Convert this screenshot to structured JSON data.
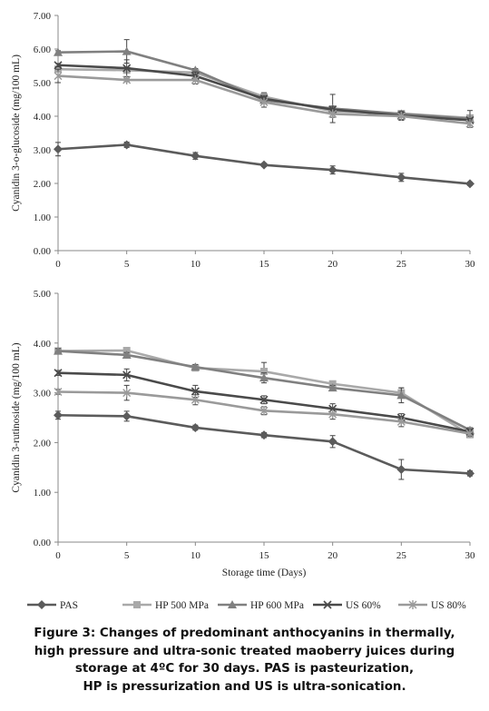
{
  "chart_data": [
    {
      "type": "line",
      "title": "",
      "xlabel": "",
      "ylabel": "Cyanidin 3-o-glucoside  (mg/100 mL)",
      "x": [
        0,
        5,
        10,
        15,
        20,
        25,
        30
      ],
      "xticks": [
        "0",
        "5",
        "10",
        "15",
        "20",
        "25",
        "30"
      ],
      "xlim": [
        0,
        30
      ],
      "ylim": [
        0,
        7
      ],
      "yticks": [
        "0.00",
        "1.00",
        "2.00",
        "3.00",
        "4.00",
        "5.00",
        "6.00",
        "7.00"
      ],
      "grid": false,
      "series": [
        {
          "name": "PAS",
          "values": [
            3.02,
            3.15,
            2.82,
            2.55,
            2.4,
            2.18,
            1.99
          ],
          "errors": [
            0.2,
            0.08,
            0.1,
            0.05,
            0.12,
            0.12,
            0.05
          ]
        },
        {
          "name": "HP 500 MPa",
          "values": [
            5.4,
            5.37,
            5.3,
            4.58,
            4.15,
            4.08,
            3.95
          ],
          "errors": [
            0.05,
            0.05,
            0.05,
            0.12,
            0.05,
            0.05,
            0.05
          ]
        },
        {
          "name": "HP 600 MPa",
          "values": [
            5.9,
            5.93,
            5.37,
            4.48,
            4.23,
            4.07,
            3.92
          ],
          "errors": [
            0.05,
            0.35,
            0.05,
            0.1,
            0.42,
            0.05,
            0.25
          ]
        },
        {
          "name": "US 60%",
          "values": [
            5.52,
            5.43,
            5.2,
            4.52,
            4.2,
            4.02,
            3.88
          ],
          "errors": [
            0.05,
            0.25,
            0.12,
            0.1,
            0.1,
            0.12,
            0.05
          ]
        },
        {
          "name": "US 80%",
          "values": [
            5.2,
            5.08,
            5.08,
            4.42,
            4.07,
            4.0,
            3.78
          ],
          "errors": [
            0.2,
            0.05,
            0.12,
            0.15,
            0.1,
            0.12,
            0.05
          ]
        }
      ]
    },
    {
      "type": "line",
      "title": "",
      "xlabel": "Storage time (Days)",
      "ylabel": "Cyanidin 3-rutinoside (mg/100 mL)",
      "x": [
        0,
        5,
        10,
        15,
        20,
        25,
        30
      ],
      "xticks": [
        "0",
        "5",
        "10",
        "15",
        "20",
        "25",
        "30"
      ],
      "xlim": [
        0,
        30
      ],
      "ylim": [
        0,
        5
      ],
      "yticks": [
        "0.00",
        "1.00",
        "2.00",
        "3.00",
        "4.00",
        "5.00"
      ],
      "grid": false,
      "series": [
        {
          "name": "PAS",
          "values": [
            2.55,
            2.53,
            2.3,
            2.15,
            2.02,
            1.46,
            1.38
          ],
          "errors": [
            0.08,
            0.1,
            0.05,
            0.05,
            0.12,
            0.2,
            0.05
          ]
        },
        {
          "name": "HP 500 MPa",
          "values": [
            3.84,
            3.85,
            3.5,
            3.43,
            3.18,
            3.0,
            2.16
          ],
          "errors": [
            0.05,
            0.05,
            0.05,
            0.18,
            0.05,
            0.1,
            0.05
          ]
        },
        {
          "name": "HP 600 MPa",
          "values": [
            3.84,
            3.76,
            3.52,
            3.3,
            3.1,
            2.95,
            2.25
          ],
          "errors": [
            0.05,
            0.05,
            0.05,
            0.1,
            0.05,
            0.15,
            0.05
          ]
        },
        {
          "name": "US 60%",
          "values": [
            3.4,
            3.36,
            3.03,
            2.86,
            2.68,
            2.5,
            2.22
          ],
          "errors": [
            0.05,
            0.12,
            0.12,
            0.08,
            0.1,
            0.08,
            0.05
          ]
        },
        {
          "name": "US 80%",
          "values": [
            3.02,
            3.0,
            2.86,
            2.64,
            2.57,
            2.42,
            2.18
          ],
          "errors": [
            0.05,
            0.15,
            0.1,
            0.08,
            0.1,
            0.1,
            0.05
          ]
        }
      ]
    }
  ],
  "legend": {
    "position": "bottom",
    "items": [
      "PAS",
      "HP 500 MPa",
      "HP 600 MPa",
      "US 60%",
      "US 80%"
    ]
  },
  "series_style": {
    "PAS": {
      "color": "#5b5b5b",
      "marker": "diamond"
    },
    "HP 500 MPa": {
      "color": "#a9a9a9",
      "marker": "square"
    },
    "HP 600 MPa": {
      "color": "#808080",
      "marker": "triangle"
    },
    "US 60%": {
      "color": "#4a4a4a",
      "marker": "x"
    },
    "US 80%": {
      "color": "#9a9a9a",
      "marker": "star"
    }
  },
  "caption": {
    "line1": "Figure 3: Changes of predominant anthocyanins in thermally,",
    "line2": "high pressure and ultra-sonic treated maoberry juices during",
    "line3": "storage at 4ºC for 30 days. PAS is pasteurization,",
    "line4": "HP is pressurization and US is ultra-sonication."
  }
}
